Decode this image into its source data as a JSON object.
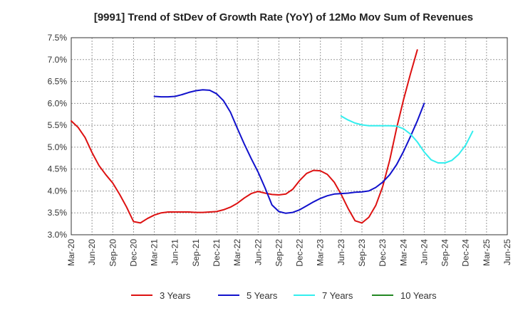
{
  "chart_data": {
    "type": "line",
    "title": "[9991]  Trend of StDev of Growth Rate (YoY) of 12Mo Mov Sum of Revenues",
    "xlabel": "",
    "ylabel": "",
    "grid": true,
    "legend_position": "bottom",
    "x_categories": [
      "Mar-20",
      "Jun-20",
      "Sep-20",
      "Dec-20",
      "Mar-21",
      "Jun-21",
      "Sep-21",
      "Dec-21",
      "Mar-22",
      "Jun-22",
      "Sep-22",
      "Dec-22",
      "Mar-23",
      "Jun-23",
      "Sep-23",
      "Dec-23",
      "Mar-24",
      "Jun-24",
      "Sep-24",
      "Dec-24",
      "Mar-25",
      "Jun-25"
    ],
    "ylim": [
      3.0,
      7.5
    ],
    "y_ticks": [
      3.0,
      3.5,
      4.0,
      4.5,
      5.0,
      5.5,
      6.0,
      6.5,
      7.0,
      7.5
    ],
    "y_tick_labels": [
      "3.0%",
      "3.5%",
      "4.0%",
      "4.5%",
      "5.0%",
      "5.5%",
      "6.0%",
      "6.5%",
      "7.0%",
      "7.5%"
    ],
    "series": [
      {
        "name": "3 Years",
        "color": "#dd1111",
        "start_index": 0,
        "values": [
          5.6,
          5.45,
          5.22,
          4.88,
          4.58,
          4.37,
          4.18,
          3.92,
          3.63,
          3.3,
          3.27,
          3.37,
          3.45,
          3.5,
          3.52,
          3.52,
          3.52,
          3.52,
          3.51,
          3.51,
          3.52,
          3.53,
          3.57,
          3.63,
          3.72,
          3.84,
          3.94,
          3.99,
          3.95,
          3.92,
          3.91,
          3.93,
          4.04,
          4.24,
          4.4,
          4.47,
          4.46,
          4.38,
          4.2,
          3.92,
          3.6,
          3.32,
          3.27,
          3.4,
          3.67,
          4.1,
          4.7,
          5.43,
          6.08,
          6.67,
          7.22
        ]
      },
      {
        "name": "5 Years",
        "color": "#1111cc",
        "start_index": 12,
        "values": [
          6.16,
          6.15,
          6.15,
          6.16,
          6.2,
          6.25,
          6.29,
          6.31,
          6.3,
          6.22,
          6.06,
          5.8,
          5.43,
          5.07,
          4.74,
          4.43,
          4.07,
          3.68,
          3.53,
          3.49,
          3.51,
          3.57,
          3.66,
          3.75,
          3.83,
          3.89,
          3.93,
          3.94,
          3.95,
          3.97,
          3.98,
          4.0,
          4.08,
          4.2,
          4.37,
          4.6,
          4.9,
          5.24,
          5.6,
          6.0
        ]
      },
      {
        "name": "7 Years",
        "color": "#33eeee",
        "start_index": 39,
        "values": [
          5.71,
          5.62,
          5.55,
          5.51,
          5.49,
          5.49,
          5.49,
          5.49,
          5.48,
          5.42,
          5.3,
          5.12,
          4.89,
          4.71,
          4.64,
          4.64,
          4.7,
          4.84,
          5.05,
          5.36
        ]
      },
      {
        "name": "10 Years",
        "color": "#228822",
        "start_index": 0,
        "values": []
      }
    ]
  }
}
